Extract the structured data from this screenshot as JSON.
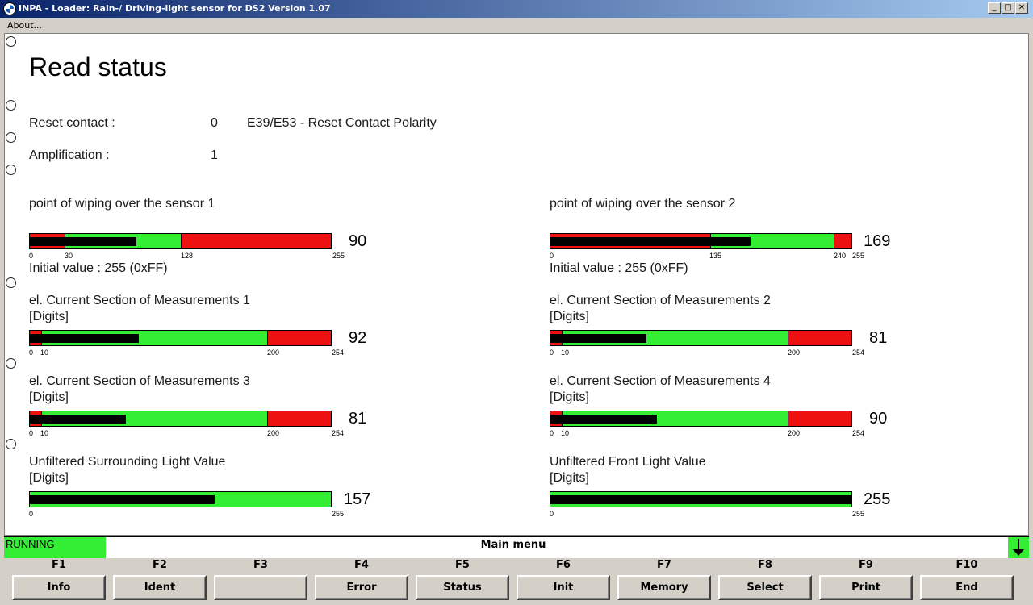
{
  "window": {
    "title": "INPA - Loader:  Rain-/ Driving-light sensor for DS2 Version 1.07",
    "buttons": {
      "minimize": "_",
      "maximize": "□",
      "close": "✕"
    }
  },
  "menu": {
    "about": "About..."
  },
  "page": {
    "title": "Read status",
    "reset_contact": {
      "label": "Reset contact :",
      "value": "0",
      "note": "E39/E53 - Reset Contact Polarity"
    },
    "amplification": {
      "label": "Amplification :",
      "value": "1"
    },
    "gauges": [
      {
        "title": "point of wiping over the sensor 1",
        "subtitle": "",
        "value": "90",
        "min": 0,
        "max": 255,
        "ticks": [
          "0",
          "30",
          "128",
          "255"
        ],
        "initial": "Initial value : 255 (0xFF)"
      },
      {
        "title": "point of wiping over the sensor 2",
        "subtitle": "",
        "value": "169",
        "min": 0,
        "max": 255,
        "ticks": [
          "0",
          "135",
          "240",
          "255"
        ],
        "initial": "Initial value : 255 (0xFF)"
      },
      {
        "title": "el. Current Section of Measurements 1",
        "subtitle": "[Digits]",
        "value": "92",
        "min": 0,
        "max": 254,
        "ticks": [
          "0",
          "10",
          "200",
          "254"
        ]
      },
      {
        "title": "el. Current Section of Measurements 2",
        "subtitle": "[Digits]",
        "value": "81",
        "min": 0,
        "max": 254,
        "ticks": [
          "0",
          "10",
          "200",
          "254"
        ]
      },
      {
        "title": "el. Current Section of Measurements 3",
        "subtitle": "[Digits]",
        "value": "81",
        "min": 0,
        "max": 254,
        "ticks": [
          "0",
          "10",
          "200",
          "254"
        ]
      },
      {
        "title": "el. Current Section of Measurements 4",
        "subtitle": "[Digits]",
        "value": "90",
        "min": 0,
        "max": 254,
        "ticks": [
          "0",
          "10",
          "200",
          "254"
        ]
      },
      {
        "title": "Unfiltered Surrounding Light Value",
        "subtitle": "[Digits]",
        "value": "157",
        "min": 0,
        "max": 255,
        "ticks": [
          "0",
          "255"
        ]
      },
      {
        "title": "Unfiltered Front Light Value",
        "subtitle": "[Digits]",
        "value": "255",
        "min": 0,
        "max": 255,
        "ticks": [
          "0",
          "255"
        ]
      }
    ]
  },
  "status": {
    "running": "RUNNING",
    "menu_title": "Main menu"
  },
  "fkeys": [
    {
      "key": "F1",
      "label": "Info"
    },
    {
      "key": "F2",
      "label": "Ident"
    },
    {
      "key": "F3",
      "label": ""
    },
    {
      "key": "F4",
      "label": "Error"
    },
    {
      "key": "F5",
      "label": "Status"
    },
    {
      "key": "F6",
      "label": "Init"
    },
    {
      "key": "F7",
      "label": "Memory"
    },
    {
      "key": "F8",
      "label": "Select"
    },
    {
      "key": "F9",
      "label": "Print"
    },
    {
      "key": "F10",
      "label": "End"
    }
  ],
  "colors": {
    "ok": "#33ee33",
    "error": "#ee1111",
    "titlebar": "#0a246a"
  }
}
